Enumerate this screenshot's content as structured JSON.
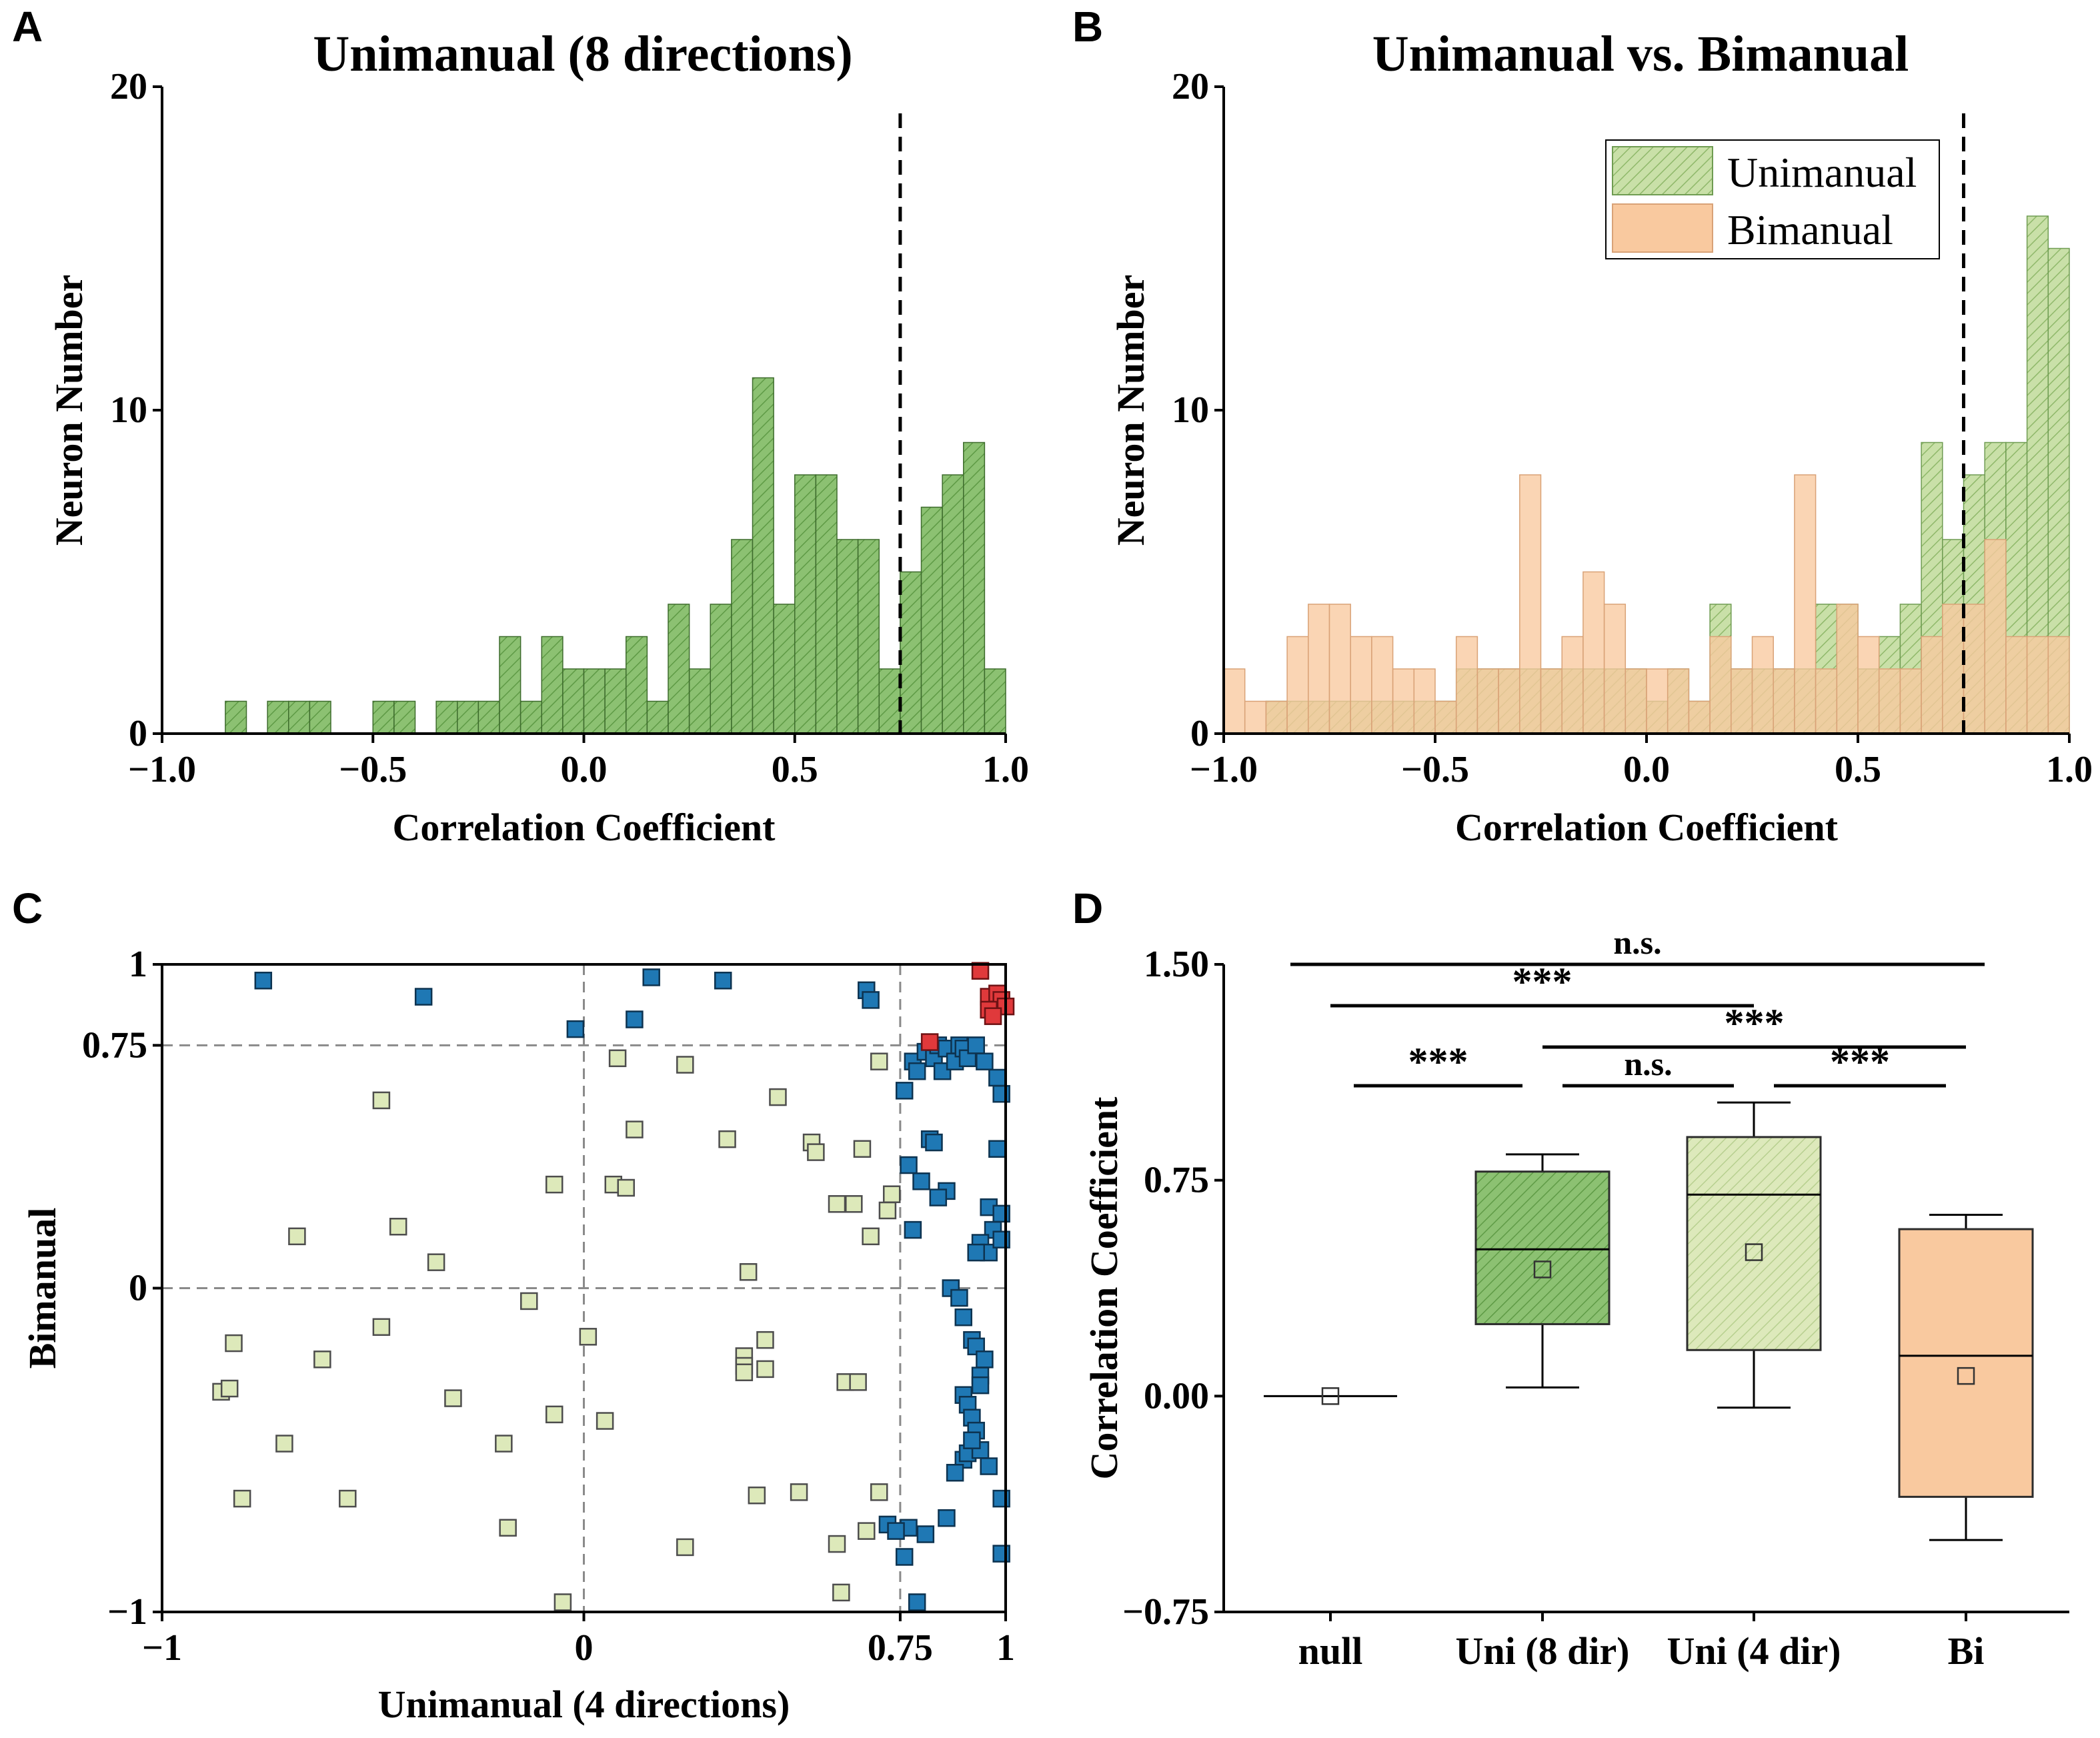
{
  "panels": {
    "A": {
      "label": "A",
      "title": "Unimanual (8 directions)"
    },
    "B": {
      "label": "B",
      "title": "Unimanual vs. Bimanual"
    },
    "C": {
      "label": "C"
    },
    "D": {
      "label": "D"
    }
  },
  "colors": {
    "uni_fill": "#8cc172",
    "uni_hatch": "#5e9a45",
    "uni_edge": "#3d6b2c",
    "uni_light_fill": "#d9e8b8",
    "uni_light_hatch": "#b7cf8f",
    "bi_fill": "#f9c99f",
    "bi_edge": "#c98f63",
    "scatter_light": "#dde9ba",
    "scatter_blue": "#1f78b4",
    "scatter_red": "#e0393b"
  },
  "chart_data": [
    {
      "id": "A",
      "type": "bar",
      "title": "Unimanual (8 directions)",
      "xlabel": "Correlation Coefficient",
      "ylabel": "Neuron Number",
      "xlim": [
        -1.0,
        1.0
      ],
      "ylim": [
        0,
        20
      ],
      "xticks": [
        "−1.0",
        "−0.5",
        "0.0",
        "0.5",
        "1.0"
      ],
      "xtick_values": [
        -1.0,
        -0.5,
        0.0,
        0.5,
        1.0
      ],
      "yticks": [
        "0",
        "10",
        "20"
      ],
      "ytick_values": [
        0,
        10,
        20
      ],
      "bin_start": -1.0,
      "bin_width": 0.05,
      "series": [
        {
          "name": "Unimanual",
          "values": [
            0,
            0,
            0,
            1,
            0,
            1,
            1,
            1,
            0,
            0,
            1,
            1,
            0,
            1,
            1,
            1,
            3,
            1,
            3,
            2,
            2,
            2,
            3,
            1,
            4,
            2,
            4,
            6,
            11,
            4,
            8,
            8,
            6,
            6,
            2,
            5,
            7,
            8,
            9,
            2
          ]
        }
      ],
      "threshold": 0.75
    },
    {
      "id": "B",
      "type": "bar",
      "title": "Unimanual vs. Bimanual",
      "xlabel": "Correlation Coefficient",
      "ylabel": "Neuron Number",
      "xlim": [
        -1.0,
        1.0
      ],
      "ylim": [
        0,
        20
      ],
      "xticks": [
        "−1.0",
        "−0.5",
        "0.0",
        "0.5",
        "1.0"
      ],
      "xtick_values": [
        -1.0,
        -0.5,
        0.0,
        0.5,
        1.0
      ],
      "yticks": [
        "0",
        "10",
        "20"
      ],
      "ytick_values": [
        0,
        10,
        20
      ],
      "bin_start": -1.0,
      "bin_width": 0.05,
      "legend": {
        "position": "top-right",
        "entries": [
          "Unimanual",
          "Bimanual"
        ]
      },
      "series": [
        {
          "name": "Unimanual",
          "values": [
            0,
            0,
            1,
            1,
            1,
            1,
            1,
            1,
            1,
            1,
            1,
            2,
            2,
            2,
            2,
            2,
            2,
            2,
            2,
            2,
            1,
            2,
            1,
            4,
            2,
            2,
            2,
            2,
            4,
            4,
            2,
            3,
            4,
            9,
            6,
            8,
            9,
            9,
            16,
            15
          ]
        },
        {
          "name": "Bimanual",
          "values": [
            2,
            1,
            1,
            3,
            4,
            4,
            3,
            3,
            2,
            2,
            1,
            3,
            2,
            2,
            8,
            2,
            3,
            5,
            4,
            2,
            2,
            2,
            1,
            3,
            2,
            3,
            2,
            8,
            2,
            4,
            3,
            2,
            2,
            3,
            4,
            4,
            6,
            3,
            3,
            3
          ]
        }
      ],
      "threshold": 0.75
    },
    {
      "id": "C",
      "type": "scatter",
      "xlabel": "Unimanual (4 directions)",
      "ylabel": "Bimanual",
      "xlim": [
        -1,
        1
      ],
      "ylim": [
        -1,
        1
      ],
      "xticks": [
        "−1",
        "0",
        "0.75",
        "1"
      ],
      "xtick_values": [
        -1,
        0,
        0.75,
        1
      ],
      "yticks": [
        "−1",
        "0",
        "0.75",
        "1"
      ],
      "ytick_values": [
        -1,
        0,
        0.75,
        1
      ],
      "reference_lines": {
        "x": [
          0,
          0.75
        ],
        "y": [
          0,
          0.75
        ]
      },
      "groups": [
        {
          "name": "neither",
          "points": [
            [
              -0.86,
              -0.32
            ],
            [
              -0.84,
              -0.31
            ],
            [
              -0.83,
              -0.17
            ],
            [
              -0.81,
              -0.65
            ],
            [
              -0.71,
              -0.48
            ],
            [
              -0.68,
              0.16
            ],
            [
              -0.62,
              -0.22
            ],
            [
              -0.56,
              -0.65
            ],
            [
              -0.48,
              -0.12
            ],
            [
              -0.48,
              0.58
            ],
            [
              -0.44,
              0.19
            ],
            [
              -0.35,
              0.08
            ],
            [
              -0.31,
              -0.34
            ],
            [
              -0.19,
              -0.48
            ],
            [
              -0.18,
              -0.74
            ],
            [
              -0.13,
              -0.04
            ],
            [
              -0.07,
              0.32
            ],
            [
              -0.07,
              -0.39
            ],
            [
              -0.05,
              -0.97
            ],
            [
              0.01,
              -0.15
            ],
            [
              0.05,
              -0.41
            ],
            [
              0.07,
              0.32
            ],
            [
              0.08,
              0.71
            ],
            [
              0.1,
              0.31
            ],
            [
              0.12,
              0.49
            ],
            [
              0.24,
              -0.8
            ],
            [
              0.24,
              0.69
            ],
            [
              0.34,
              0.46
            ],
            [
              0.39,
              0.05
            ],
            [
              0.38,
              -0.21
            ],
            [
              0.38,
              -0.24
            ],
            [
              0.38,
              -0.26
            ],
            [
              0.43,
              -0.16
            ],
            [
              0.43,
              -0.25
            ],
            [
              0.46,
              0.59
            ],
            [
              0.41,
              -0.64
            ],
            [
              0.51,
              -0.63
            ],
            [
              0.54,
              0.45
            ],
            [
              0.55,
              0.42
            ],
            [
              0.6,
              0.26
            ],
            [
              0.6,
              -0.79
            ],
            [
              0.61,
              -0.94
            ],
            [
              0.62,
              -0.29
            ],
            [
              0.64,
              0.26
            ],
            [
              0.65,
              -0.29
            ],
            [
              0.66,
              0.43
            ],
            [
              0.67,
              -0.75
            ],
            [
              0.68,
              0.16
            ],
            [
              0.7,
              0.7
            ],
            [
              0.7,
              -0.63
            ],
            [
              0.72,
              0.24
            ],
            [
              0.73,
              0.29
            ]
          ]
        },
        {
          "name": "unimanual_only",
          "points": [
            [
              -0.76,
              0.95
            ],
            [
              -0.38,
              0.9
            ],
            [
              -0.02,
              0.8
            ],
            [
              0.12,
              0.83
            ],
            [
              0.16,
              0.96
            ],
            [
              0.33,
              0.95
            ],
            [
              0.67,
              0.92
            ],
            [
              0.68,
              0.89
            ],
            [
              0.76,
              0.61
            ],
            [
              0.78,
              0.7
            ],
            [
              0.79,
              0.67
            ],
            [
              0.81,
              0.73
            ],
            [
              0.83,
              0.71
            ],
            [
              0.84,
              0.75
            ],
            [
              0.85,
              0.67
            ],
            [
              0.86,
              0.74
            ],
            [
              0.88,
              0.7
            ],
            [
              0.89,
              0.75
            ],
            [
              0.9,
              0.74
            ],
            [
              0.91,
              0.71
            ],
            [
              0.93,
              0.75
            ],
            [
              0.95,
              0.7
            ],
            [
              0.98,
              0.65
            ],
            [
              0.99,
              0.6
            ],
            [
              0.77,
              0.38
            ],
            [
              0.82,
              0.46
            ],
            [
              0.83,
              0.45
            ],
            [
              0.86,
              0.3
            ],
            [
              0.8,
              0.33
            ],
            [
              0.78,
              0.18
            ],
            [
              0.84,
              0.28
            ],
            [
              0.98,
              0.43
            ],
            [
              0.96,
              0.25
            ],
            [
              0.97,
              0.18
            ],
            [
              0.99,
              0.23
            ],
            [
              0.94,
              0.14
            ],
            [
              0.96,
              0.11
            ],
            [
              0.99,
              0.15
            ],
            [
              0.93,
              0.11
            ],
            [
              0.87,
              0.0
            ],
            [
              0.89,
              -0.03
            ],
            [
              0.9,
              -0.09
            ],
            [
              0.92,
              -0.16
            ],
            [
              0.93,
              -0.18
            ],
            [
              0.95,
              -0.22
            ],
            [
              0.94,
              -0.27
            ],
            [
              0.9,
              -0.33
            ],
            [
              0.91,
              -0.36
            ],
            [
              0.92,
              -0.4
            ],
            [
              0.93,
              -0.44
            ],
            [
              0.9,
              -0.53
            ],
            [
              0.91,
              -0.51
            ],
            [
              0.94,
              -0.5
            ],
            [
              0.96,
              -0.55
            ],
            [
              0.88,
              -0.57
            ],
            [
              0.86,
              -0.71
            ],
            [
              0.81,
              -0.76
            ],
            [
              0.77,
              -0.74
            ],
            [
              0.72,
              -0.73
            ],
            [
              0.74,
              -0.75
            ],
            [
              0.76,
              -0.83
            ],
            [
              0.79,
              -0.97
            ],
            [
              0.99,
              -0.65
            ],
            [
              0.99,
              -0.82
            ],
            [
              0.94,
              -0.3
            ],
            [
              0.92,
              -0.47
            ]
          ]
        },
        {
          "name": "both",
          "points": [
            [
              0.82,
              0.76
            ],
            [
              0.94,
              0.98
            ],
            [
              0.96,
              0.9
            ],
            [
              0.98,
              0.91
            ],
            [
              0.99,
              0.89
            ],
            [
              0.96,
              0.86
            ],
            [
              1.0,
              0.87
            ],
            [
              0.97,
              0.84
            ]
          ]
        }
      ]
    },
    {
      "id": "D",
      "type": "box",
      "ylabel": "Correlation Coefficient",
      "ylim": [
        -0.75,
        1.5
      ],
      "yticks": [
        "−0.75",
        "0.00",
        "0.75",
        "1.50"
      ],
      "ytick_values": [
        -0.75,
        0.0,
        0.75,
        1.5
      ],
      "categories": [
        "null",
        "Uni (8 dir)",
        "Uni (4 dir)",
        "Bi"
      ],
      "boxes": [
        {
          "name": "null",
          "whisker_low": 0.0,
          "q1": 0.0,
          "median": 0.0,
          "q3": 0.0,
          "whisker_high": 0.0,
          "mean": 0.0
        },
        {
          "name": "Uni (8 dir)",
          "whisker_low": 0.03,
          "q1": 0.25,
          "median": 0.51,
          "q3": 0.78,
          "whisker_high": 0.84,
          "mean": 0.44
        },
        {
          "name": "Uni (4 dir)",
          "whisker_low": -0.04,
          "q1": 0.16,
          "median": 0.7,
          "q3": 0.9,
          "whisker_high": 1.02,
          "mean": 0.5
        },
        {
          "name": "Bi",
          "whisker_low": -0.5,
          "q1": -0.35,
          "median": 0.14,
          "q3": 0.58,
          "whisker_high": 0.63,
          "mean": 0.07
        }
      ],
      "significance": [
        {
          "from": 0,
          "to": 3,
          "label": "n.s."
        },
        {
          "from": 0,
          "to": 2,
          "label": "***"
        },
        {
          "from": 1,
          "to": 3,
          "label": "***"
        },
        {
          "from": 0,
          "to": 1,
          "label": "***"
        },
        {
          "from": 1,
          "to": 2,
          "label": "n.s."
        },
        {
          "from": 2,
          "to": 3,
          "label": "***"
        }
      ]
    }
  ]
}
